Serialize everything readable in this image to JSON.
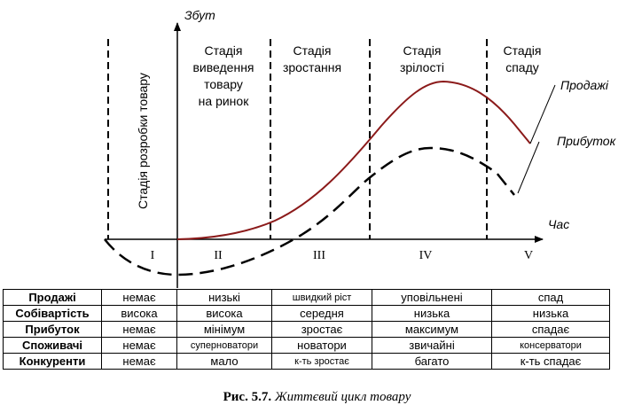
{
  "axes": {
    "y_label": "Збут",
    "x_label": "Час"
  },
  "stages": {
    "development": [
      "Стадія розробки товару"
    ],
    "introduction": [
      "Стадія",
      "виведення",
      "товару",
      "на ринок"
    ],
    "growth": [
      "Стадія",
      "зростання"
    ],
    "maturity": [
      "Стадія",
      "зрілості"
    ],
    "decline": [
      "Стадія",
      "спаду"
    ]
  },
  "roman": [
    "I",
    "II",
    "III",
    "IV",
    "V"
  ],
  "legend": {
    "sales": "Продажі",
    "profit": "Прибуток"
  },
  "colors": {
    "sales": "#8b1a1a",
    "profit": "#000000"
  },
  "table": {
    "rows": [
      {
        "header": "Продажі",
        "cells": [
          "немає",
          "низькі",
          "швидкий ріст",
          "уповільнені",
          "спад"
        ]
      },
      {
        "header": "Собівартість",
        "cells": [
          "висока",
          "висока",
          "середня",
          "низька",
          "низька"
        ]
      },
      {
        "header": "Прибуток",
        "cells": [
          "немає",
          "мінімум",
          "зростає",
          "максимум",
          "спадає"
        ]
      },
      {
        "header": "Споживачі",
        "cells": [
          "немає",
          "суперноватори",
          "новатори",
          "звичайні",
          "консерватори"
        ]
      },
      {
        "header": "Конкуренти",
        "cells": [
          "немає",
          "мало",
          "к-ть зростає",
          "багато",
          "к-ть спадає"
        ]
      }
    ]
  },
  "caption": {
    "number": "Рис. 5.7.",
    "title": "Життєвий цикл товару"
  }
}
